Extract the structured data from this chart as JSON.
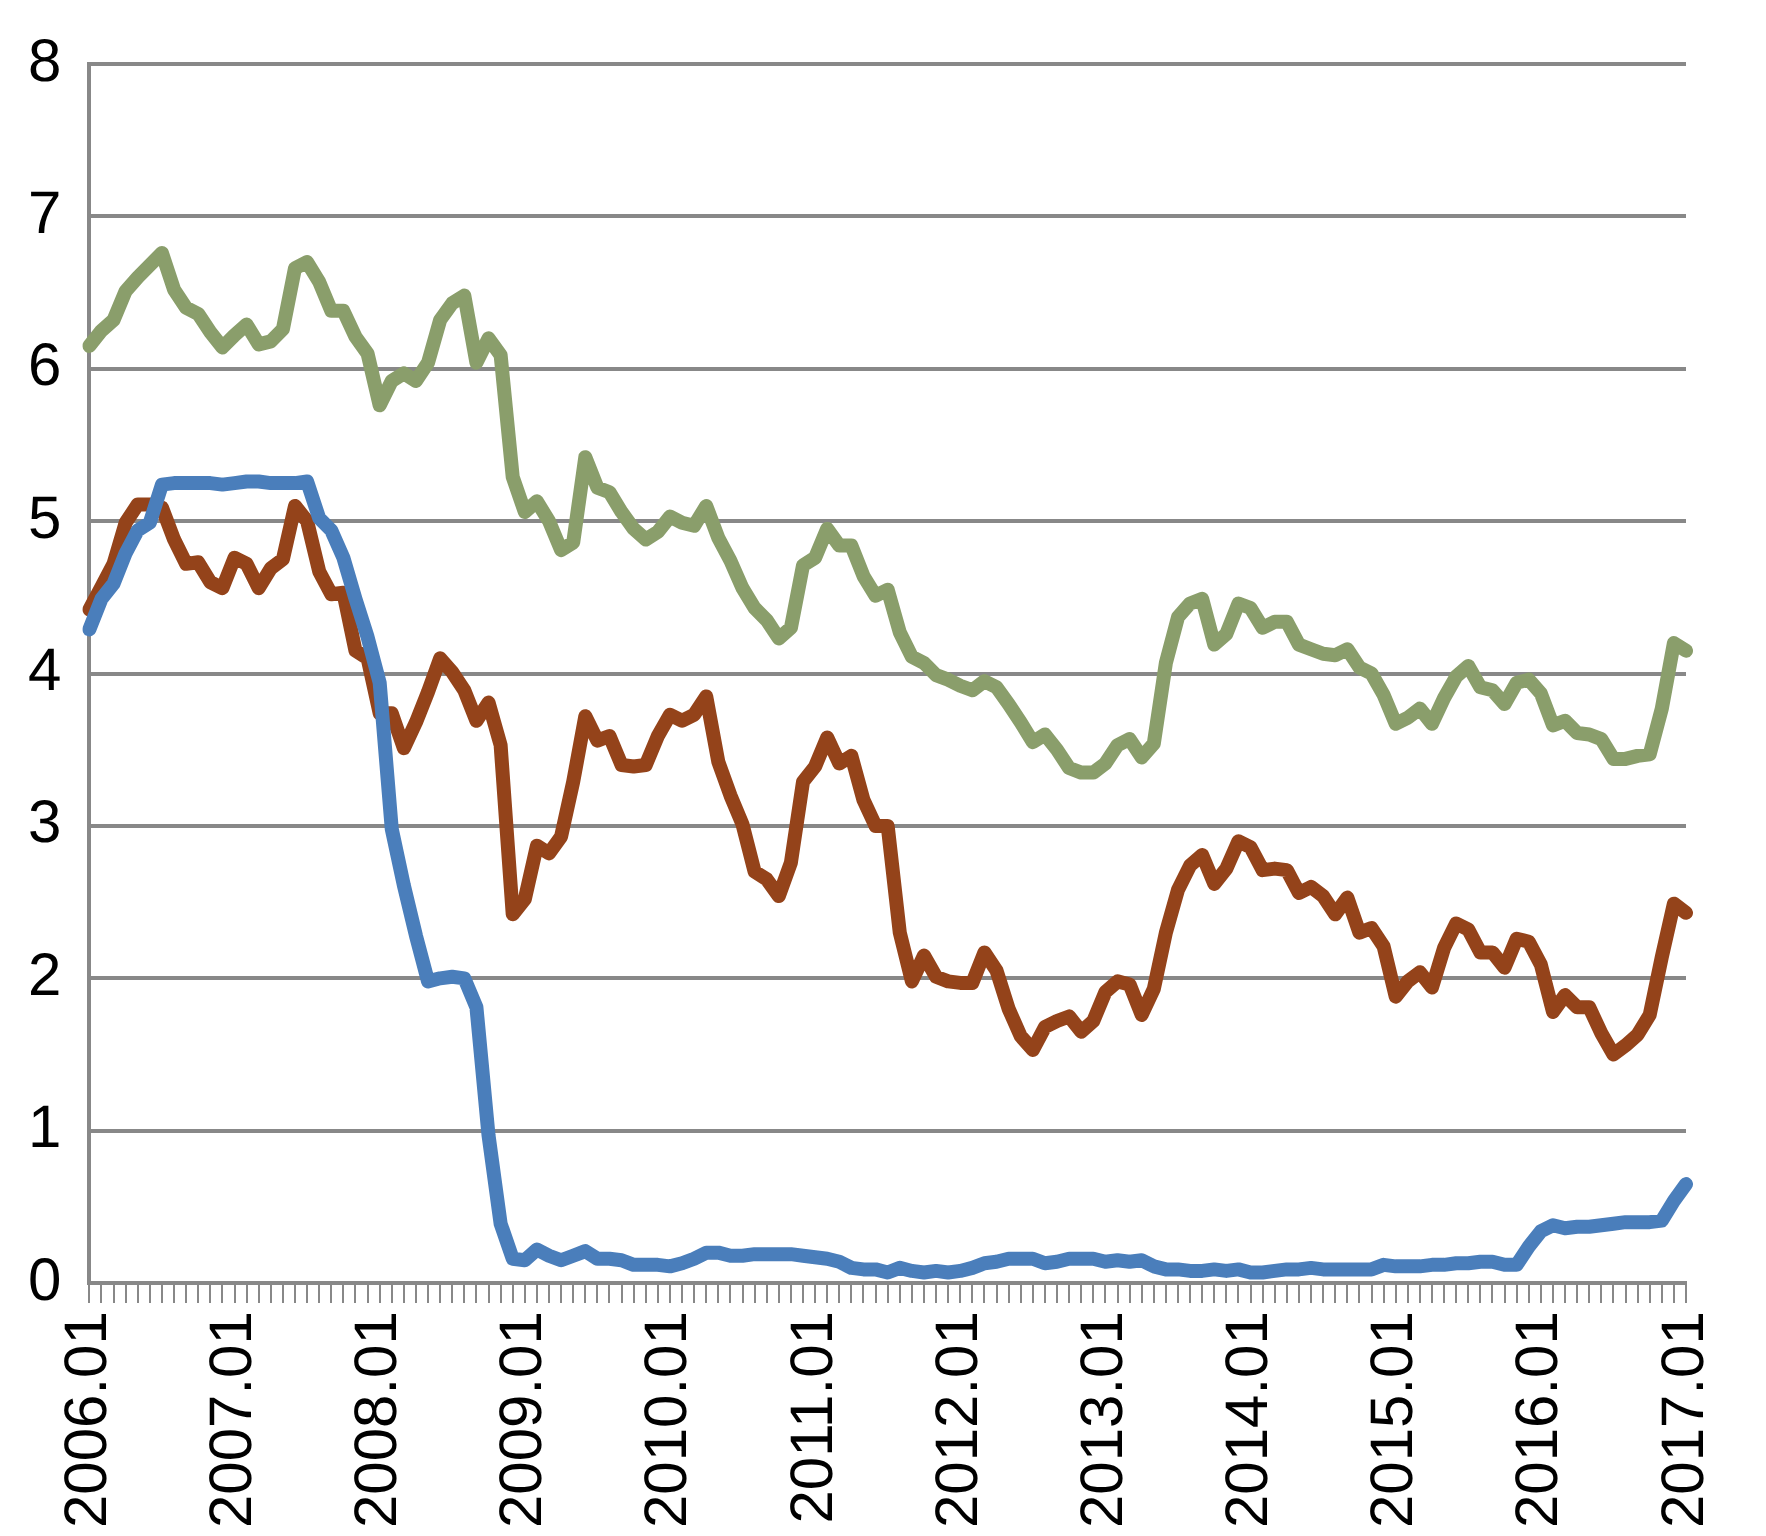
{
  "chart_data": {
    "type": "line",
    "categories": [
      "2006.01",
      null,
      null,
      null,
      null,
      null,
      null,
      null,
      null,
      null,
      null,
      null,
      "2007.01",
      null,
      null,
      null,
      null,
      null,
      null,
      null,
      null,
      null,
      null,
      null,
      "2008.01",
      null,
      null,
      null,
      null,
      null,
      null,
      null,
      null,
      null,
      null,
      null,
      "2009.01",
      null,
      null,
      null,
      null,
      null,
      null,
      null,
      null,
      null,
      null,
      null,
      "2010.01",
      null,
      null,
      null,
      null,
      null,
      null,
      null,
      null,
      null,
      null,
      null,
      "2011.01",
      null,
      null,
      null,
      null,
      null,
      null,
      null,
      null,
      null,
      null,
      null,
      "2012.01",
      null,
      null,
      null,
      null,
      null,
      null,
      null,
      null,
      null,
      null,
      null,
      "2013.01",
      null,
      null,
      null,
      null,
      null,
      null,
      null,
      null,
      null,
      null,
      null,
      "2014.01",
      null,
      null,
      null,
      null,
      null,
      null,
      null,
      null,
      null,
      null,
      null,
      "2015.01",
      null,
      null,
      null,
      null,
      null,
      null,
      null,
      null,
      null,
      null,
      null,
      "2016.01",
      null,
      null,
      null,
      null,
      null,
      null,
      null,
      null,
      null,
      null,
      null,
      "2017.01"
    ],
    "series": [
      {
        "color": "#4a7ebb",
        "values": [
          4.29,
          4.49,
          4.59,
          4.79,
          4.94,
          4.99,
          5.24,
          5.25,
          5.25,
          5.25,
          5.25,
          5.24,
          5.25,
          5.26,
          5.26,
          5.25,
          5.25,
          5.25,
          5.26,
          5.02,
          4.94,
          4.76,
          4.49,
          4.24,
          3.94,
          2.98,
          2.61,
          2.28,
          1.98,
          2.0,
          2.01,
          2.0,
          1.81,
          0.97,
          0.39,
          0.16,
          0.15,
          0.22,
          0.18,
          0.15,
          0.18,
          0.21,
          0.16,
          0.16,
          0.15,
          0.12,
          0.12,
          0.12,
          0.11,
          0.13,
          0.16,
          0.2,
          0.2,
          0.18,
          0.18,
          0.19,
          0.19,
          0.19,
          0.19,
          0.18,
          0.17,
          0.16,
          0.14,
          0.1,
          0.09,
          0.09,
          0.07,
          0.1,
          0.08,
          0.07,
          0.08,
          0.07,
          0.08,
          0.1,
          0.13,
          0.14,
          0.16,
          0.16,
          0.16,
          0.13,
          0.14,
          0.16,
          0.16,
          0.16,
          0.14,
          0.15,
          0.14,
          0.15,
          0.11,
          0.09,
          0.09,
          0.08,
          0.08,
          0.09,
          0.08,
          0.09,
          0.07,
          0.07,
          0.08,
          0.09,
          0.09,
          0.1,
          0.09,
          0.09,
          0.09,
          0.09,
          0.09,
          0.12,
          0.11,
          0.11,
          0.11,
          0.12,
          0.12,
          0.13,
          0.13,
          0.14,
          0.14,
          0.12,
          0.12,
          0.24,
          0.34,
          0.38,
          0.36,
          0.37,
          0.37,
          0.38,
          0.39,
          0.4,
          0.4,
          0.4,
          0.41,
          0.54,
          0.65
        ]
      },
      {
        "color": "#94431a",
        "values": [
          4.42,
          4.57,
          4.72,
          4.99,
          5.11,
          5.11,
          5.09,
          4.88,
          4.72,
          4.73,
          4.6,
          4.56,
          4.76,
          4.72,
          4.56,
          4.69,
          4.75,
          5.1,
          5.0,
          4.67,
          4.52,
          4.53,
          4.15,
          4.1,
          3.74,
          3.74,
          3.51,
          3.68,
          3.88,
          4.1,
          4.01,
          3.89,
          3.69,
          3.81,
          3.53,
          2.42,
          2.52,
          2.87,
          2.82,
          2.93,
          3.29,
          3.72,
          3.56,
          3.59,
          3.4,
          3.39,
          3.4,
          3.59,
          3.73,
          3.69,
          3.73,
          3.85,
          3.42,
          3.2,
          3.01,
          2.7,
          2.65,
          2.54,
          2.76,
          3.29,
          3.39,
          3.58,
          3.41,
          3.46,
          3.17,
          3.0,
          3.0,
          2.3,
          1.98,
          2.15,
          2.01,
          1.98,
          1.97,
          1.97,
          2.17,
          2.05,
          1.8,
          1.62,
          1.53,
          1.68,
          1.72,
          1.75,
          1.65,
          1.72,
          1.91,
          1.98,
          1.96,
          1.76,
          1.93,
          2.3,
          2.58,
          2.74,
          2.81,
          2.62,
          2.72,
          2.9,
          2.86,
          2.71,
          2.72,
          2.71,
          2.56,
          2.6,
          2.54,
          2.42,
          2.53,
          2.3,
          2.33,
          2.21,
          1.88,
          1.98,
          2.04,
          1.94,
          2.2,
          2.36,
          2.32,
          2.17,
          2.17,
          2.07,
          2.26,
          2.24,
          2.09,
          1.78,
          1.89,
          1.81,
          1.81,
          1.64,
          1.5,
          1.56,
          1.63,
          1.76,
          2.14,
          2.49,
          2.43
        ]
      },
      {
        "color": "#8a9e6b",
        "values": [
          6.15,
          6.25,
          6.32,
          6.51,
          6.6,
          6.68,
          6.76,
          6.52,
          6.4,
          6.36,
          6.24,
          6.14,
          6.22,
          6.29,
          6.16,
          6.18,
          6.26,
          6.66,
          6.7,
          6.57,
          6.38,
          6.38,
          6.21,
          6.1,
          5.76,
          5.92,
          5.97,
          5.92,
          6.04,
          6.32,
          6.43,
          6.48,
          6.04,
          6.2,
          6.09,
          5.29,
          5.06,
          5.13,
          5.0,
          4.81,
          4.86,
          5.42,
          5.22,
          5.19,
          5.06,
          4.95,
          4.88,
          4.93,
          5.03,
          4.99,
          4.97,
          5.1,
          4.89,
          4.74,
          4.56,
          4.43,
          4.35,
          4.23,
          4.3,
          4.71,
          4.76,
          4.95,
          4.84,
          4.84,
          4.64,
          4.51,
          4.55,
          4.27,
          4.11,
          4.07,
          3.99,
          3.96,
          3.92,
          3.89,
          3.95,
          3.91,
          3.8,
          3.68,
          3.55,
          3.6,
          3.5,
          3.38,
          3.35,
          3.35,
          3.41,
          3.53,
          3.57,
          3.45,
          3.54,
          4.07,
          4.37,
          4.46,
          4.49,
          4.19,
          4.26,
          4.46,
          4.43,
          4.3,
          4.34,
          4.34,
          4.19,
          4.16,
          4.13,
          4.12,
          4.16,
          4.04,
          4.0,
          3.86,
          3.67,
          3.71,
          3.77,
          3.67,
          3.84,
          3.98,
          4.05,
          3.91,
          3.89,
          3.8,
          3.94,
          3.96,
          3.87,
          3.66,
          3.69,
          3.61,
          3.6,
          3.57,
          3.44,
          3.44,
          3.46,
          3.47,
          3.77,
          4.2,
          4.15
        ]
      }
    ],
    "ylim": [
      0,
      8
    ],
    "yticks": [
      0,
      1,
      2,
      3,
      4,
      5,
      6,
      7,
      8
    ],
    "grid": "y",
    "legend": false,
    "marker": "none",
    "line_style": "solid"
  }
}
